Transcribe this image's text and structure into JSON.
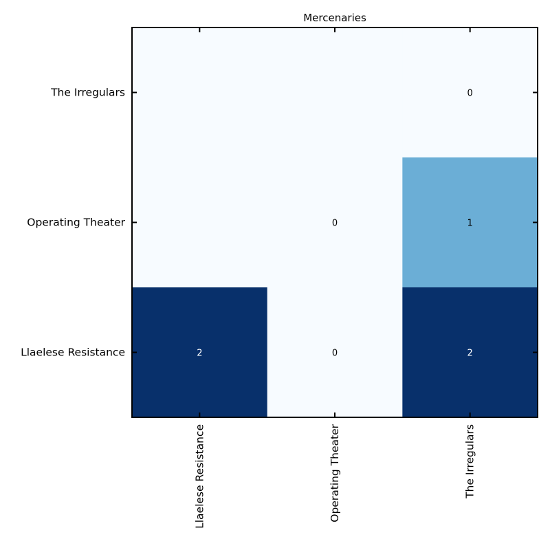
{
  "chart_data": {
    "type": "heatmap",
    "title": "Mercenaries",
    "x_categories": [
      "Llaelese Resistance",
      "Operating Theater",
      "The Irregulars"
    ],
    "y_categories": [
      "The Irregulars",
      "Operating Theater",
      "Llaelese Resistance"
    ],
    "values": [
      [
        null,
        null,
        0
      ],
      [
        null,
        0,
        1
      ],
      [
        2,
        0,
        2
      ]
    ],
    "value_range": [
      0,
      2
    ],
    "colormap": "Blues",
    "colors": {
      "low": "#f7fbff",
      "mid": "#6baed6",
      "high": "#08306b",
      "frame": "#000000",
      "label_dark": "#000000",
      "label_light": "#ffffff"
    },
    "grid": false,
    "legend": "none"
  }
}
